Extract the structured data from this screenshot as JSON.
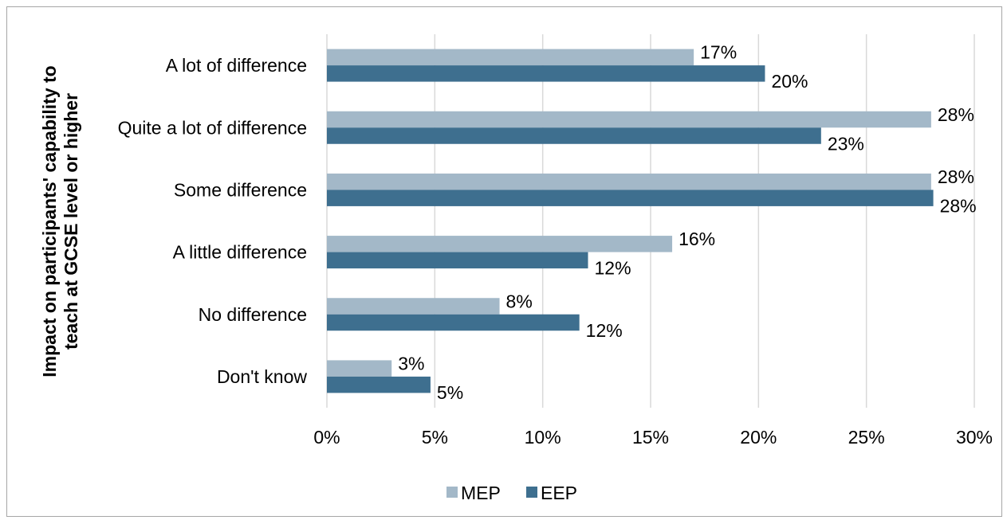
{
  "chart_data": {
    "type": "bar",
    "orientation": "horizontal",
    "categories": [
      "A lot of difference",
      "Quite a lot of difference",
      "Some difference",
      "A little difference",
      "No difference",
      "Don't know"
    ],
    "series": [
      {
        "name": "MEP",
        "values": [
          17,
          28,
          28,
          16,
          8,
          3
        ],
        "labels": [
          "17%",
          "28%",
          "28%",
          "16%",
          "8%",
          "3%"
        ],
        "color": "#a3b8c8"
      },
      {
        "name": "EEP",
        "values": [
          20.3,
          22.9,
          28.1,
          12.1,
          11.7,
          4.8
        ],
        "labels": [
          "20%",
          "23%",
          "28%",
          "12%",
          "12%",
          "5%"
        ],
        "color": "#3e6f8f"
      }
    ],
    "xticks": [
      "0%",
      "5%",
      "10%",
      "15%",
      "20%",
      "25%",
      "30%"
    ],
    "xlim": [
      0,
      30
    ],
    "ylabel": "Impact on participants' capability to teach at GCSE level or higher",
    "ylabel_lines": [
      "Impact on participants' capability to",
      "teach at GCSE level or higher"
    ],
    "grid": "vertical",
    "legend_position": "bottom"
  }
}
